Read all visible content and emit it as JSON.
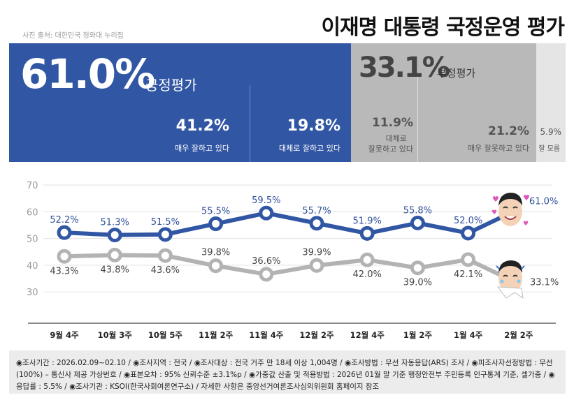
{
  "header": {
    "photo_credit": "사진 출처: 대한민국 청와대 누리집",
    "title": "이재명 대통령 국정운영 평가"
  },
  "summary": {
    "positive": {
      "value": "61.0%",
      "label": "긍정평가",
      "color": "#3156a4"
    },
    "negative": {
      "value": "33.1%",
      "label": "부정평가",
      "color": "#b9b9b9"
    },
    "breakdown": [
      {
        "value": "41.2%",
        "label": "매우 잘하고 있다"
      },
      {
        "value": "19.8%",
        "label": "대체로 잘하고 있다"
      },
      {
        "value": "11.9%",
        "label_lines": [
          "대체로",
          "잘못하고 있다"
        ]
      },
      {
        "value": "21.2%",
        "label": "매우 잘못하고 있다"
      },
      {
        "value": "5.9%",
        "label": "잘 모름"
      }
    ]
  },
  "chart_data": {
    "type": "line",
    "categories": [
      "9월 4주",
      "10월 3주",
      "10월 5주",
      "11월 2주",
      "11월 4주",
      "12월 2주",
      "12월 4주",
      "1월 2주",
      "1월 4주",
      "2월 2주"
    ],
    "series": [
      {
        "name": "긍정평가",
        "color": "#3156a4",
        "values": [
          52.2,
          51.3,
          51.5,
          55.5,
          59.5,
          55.7,
          51.9,
          55.8,
          52.0,
          61.0
        ],
        "labels": [
          "52.2%",
          "51.3%",
          "51.5%",
          "55.5%",
          "59.5%",
          "55.7%",
          "51.9%",
          "55.8%",
          "52.0%",
          "61.0%"
        ]
      },
      {
        "name": "부정평가",
        "color": "#b3b3b3",
        "values": [
          43.3,
          43.8,
          43.6,
          39.8,
          36.6,
          39.9,
          42.0,
          39.0,
          42.1,
          33.1
        ],
        "labels": [
          "43.3%",
          "43.8%",
          "43.6%",
          "39.8%",
          "36.6%",
          "39.9%",
          "42.0%",
          "39.0%",
          "42.1%",
          "33.1%"
        ]
      }
    ],
    "yticks": [
      "70",
      "60",
      "50",
      "40",
      "30"
    ],
    "ylim": [
      25,
      70
    ]
  },
  "footer": {
    "text": "◉조사기간 : 2026.02.09~02.10 / ◉조사지역 : 전국 / ◉조사대상 : 전국 거주 만 18세 이상 1,004명 / ◉조사방법 : 무선 자동응답(ARS) 조사 / ◉피조사자선정방법 : 무선(100%) – 통신사 제공 가상번호 / ◉표본오차 : 95% 신뢰수준 ±3.1%p / ◉가중값 산출 및 적용방법 : 2026년 01월 말 기준 행정안전부 주민등록 인구통계 기준, 셀가중 / ◉응답률 : 5.5% / ◉조사기관 : KSOI(한국사회여론연구소) / 자세한 사항은 중앙선거여론조사심의위원회 홈페이지 참조"
  }
}
